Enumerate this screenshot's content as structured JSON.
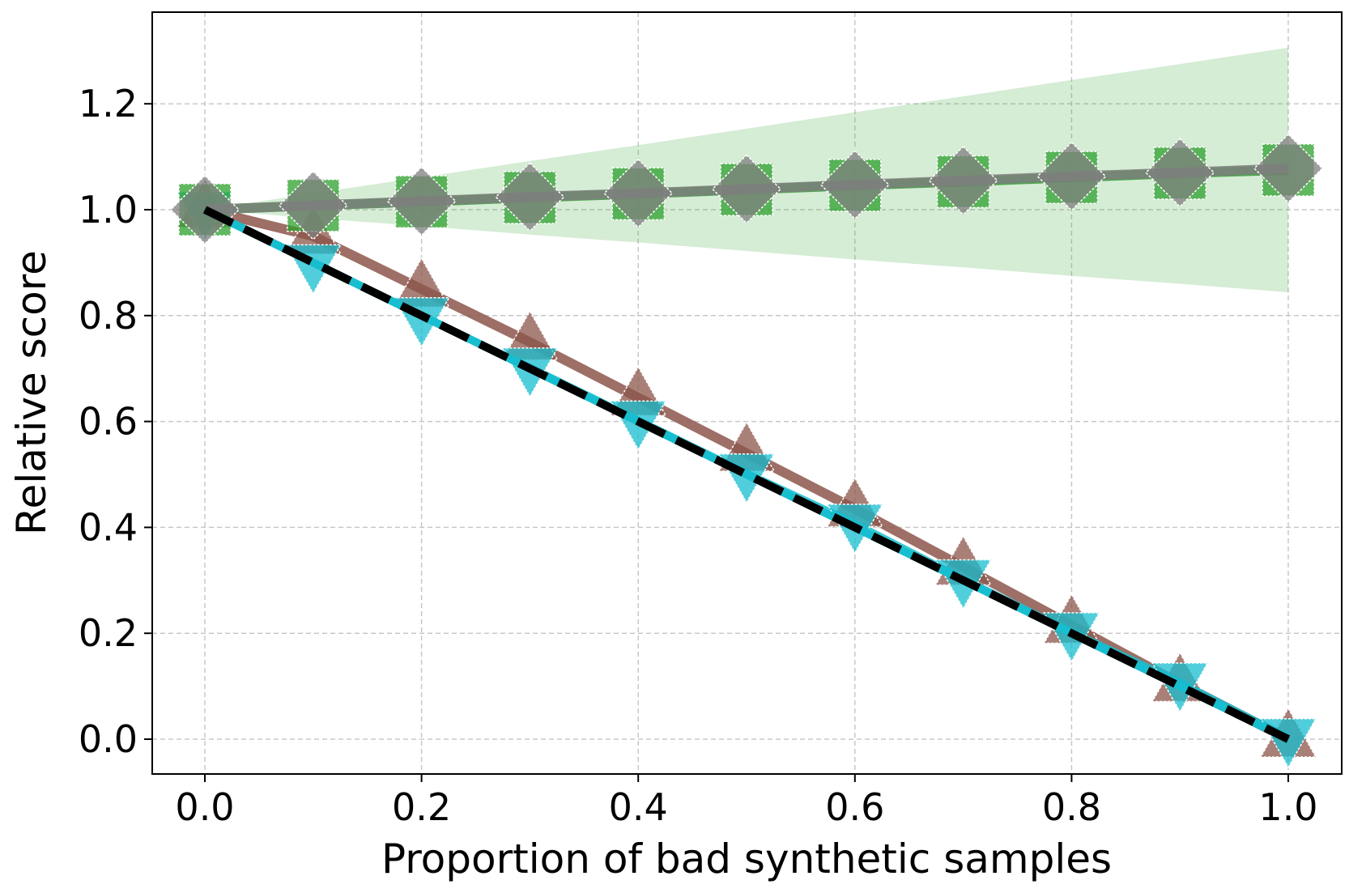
{
  "chart_data": {
    "type": "line",
    "xlabel": "Proportion of bad synthetic samples",
    "ylabel": "Relative score",
    "xlim": [
      -0.05,
      1.05
    ],
    "ylim": [
      -0.065,
      1.37
    ],
    "grid": true,
    "xticks": [
      "0.0",
      "0.2",
      "0.4",
      "0.6",
      "0.8",
      "1.0"
    ],
    "yticks": [
      "0.0",
      "0.2",
      "0.4",
      "0.6",
      "0.8",
      "1.0",
      "1.2"
    ],
    "x": [
      0.0,
      0.1,
      0.2,
      0.3,
      0.4,
      0.5,
      0.6,
      0.7,
      0.8,
      0.9,
      1.0
    ],
    "band": {
      "color": "#2ca02c",
      "upper": [
        1.0,
        1.031,
        1.061,
        1.092,
        1.122,
        1.153,
        1.184,
        1.214,
        1.245,
        1.275,
        1.306
      ],
      "lower": [
        1.0,
        0.984,
        0.969,
        0.953,
        0.938,
        0.922,
        0.906,
        0.891,
        0.875,
        0.86,
        0.844
      ]
    },
    "series": [
      {
        "color": "#2ca02c",
        "marker": "square",
        "values": [
          1.0,
          1.008,
          1.015,
          1.023,
          1.03,
          1.038,
          1.046,
          1.053,
          1.061,
          1.069,
          1.075
        ]
      },
      {
        "color": "#7f7f7f",
        "marker": "diamond",
        "values": [
          1.0,
          1.008,
          1.016,
          1.024,
          1.031,
          1.039,
          1.047,
          1.055,
          1.063,
          1.07,
          1.078
        ]
      },
      {
        "color": "#8c564b",
        "marker": "triangle-up",
        "values": [
          1.0,
          0.95,
          0.85,
          0.75,
          0.645,
          0.54,
          0.435,
          0.325,
          0.215,
          0.105,
          0.0
        ]
      },
      {
        "color": "#17becf",
        "marker": "triangle-down",
        "values": [
          1.0,
          0.9,
          0.8,
          0.705,
          0.605,
          0.505,
          0.41,
          0.305,
          0.205,
          0.11,
          0.005
        ]
      },
      {
        "color": "#000000",
        "marker": "none",
        "dashed": true,
        "values": [
          1.0,
          0.9,
          0.8,
          0.7,
          0.6,
          0.5,
          0.4,
          0.3,
          0.2,
          0.1,
          0.0
        ]
      }
    ]
  }
}
